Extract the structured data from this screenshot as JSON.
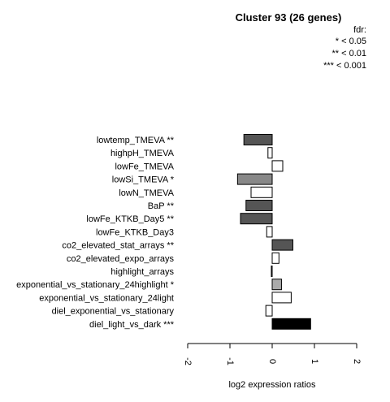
{
  "chart_data": {
    "type": "bar",
    "orientation": "horizontal",
    "title": "Cluster 93 (26 genes)",
    "xlabel": "log2 expression ratios",
    "xlim": [
      -2,
      2
    ],
    "xticks": [
      "-2",
      "-1",
      "0",
      "1",
      "2"
    ],
    "legend": {
      "title": "fdr:",
      "entries": [
        "* < 0.05",
        "** < 0.01",
        "*** < 0.001"
      ],
      "placement": "top-right"
    },
    "bars": [
      {
        "label": "lowtemp_TMEVA **",
        "value": -0.67,
        "color": "#555555"
      },
      {
        "label": "highpH_TMEVA",
        "value": -0.1,
        "color": "#ffffff"
      },
      {
        "label": "lowFe_TMEVA",
        "value": 0.25,
        "color": "#ffffff"
      },
      {
        "label": "lowSi_TMEVA *",
        "value": -0.82,
        "color": "#888888"
      },
      {
        "label": "lowN_TMEVA",
        "value": -0.5,
        "color": "#ffffff"
      },
      {
        "label": "BaP **",
        "value": -0.62,
        "color": "#555555"
      },
      {
        "label": "lowFe_KTKB_Day5 **",
        "value": -0.75,
        "color": "#555555"
      },
      {
        "label": "lowFe_KTKB_Day3",
        "value": -0.13,
        "color": "#ffffff"
      },
      {
        "label": "co2_elevated_stat_arrays **",
        "value": 0.49,
        "color": "#555555"
      },
      {
        "label": "co2_elevated_expo_arrays",
        "value": 0.16,
        "color": "#ffffff"
      },
      {
        "label": "highlight_arrays",
        "value": -0.02,
        "color": "#ffffff"
      },
      {
        "label": "exponential_vs_stationary_24highlight *",
        "value": 0.22,
        "color": "#aaaaaa"
      },
      {
        "label": "exponential_vs_stationary_24light",
        "value": 0.45,
        "color": "#ffffff"
      },
      {
        "label": "diel_exponential_vs_stationary",
        "value": -0.15,
        "color": "#ffffff"
      },
      {
        "label": "diel_light_vs_dark ***",
        "value": 0.91,
        "color": "#000000"
      }
    ]
  }
}
